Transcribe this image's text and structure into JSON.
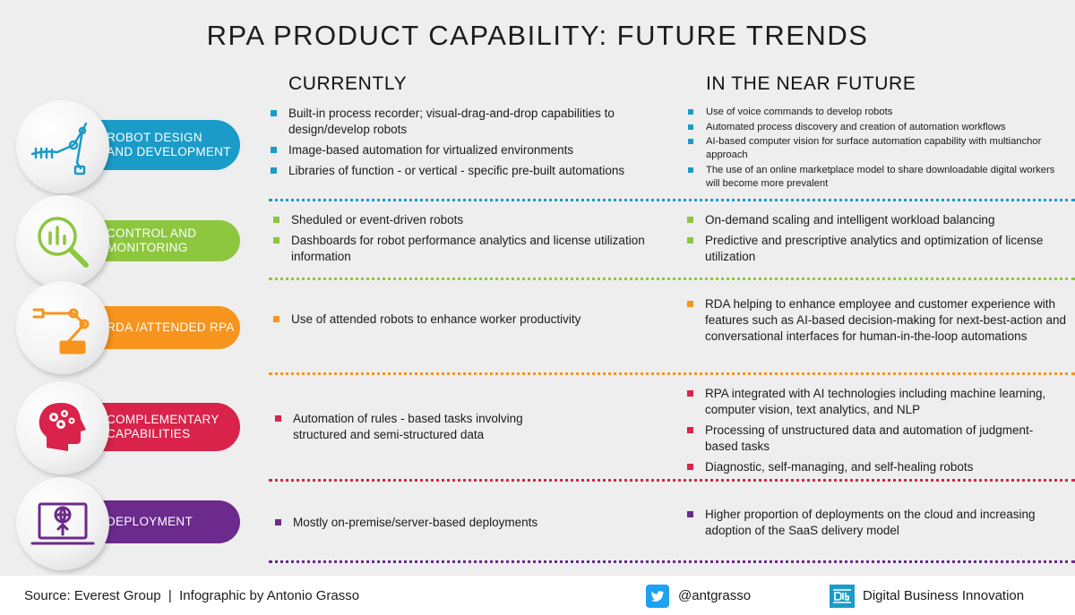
{
  "title": "RPA PRODUCT CAPABILITY: FUTURE TRENDS",
  "columns": {
    "current": "CURRENTLY",
    "future": "IN THE NEAR FUTURE"
  },
  "rows": [
    {
      "label_line1": "ROBOT DESIGN",
      "label_line2": "AND DEVELOPMENT",
      "color": "#1b9bc7",
      "icon": "robot-arm-icon",
      "current": [
        "Built-in process recorder; visual-drag-and-drop capabilities to design/develop robots",
        "Image-based automation for virtualized environments",
        "Libraries of function - or vertical - specific pre-built automations"
      ],
      "future": [
        "Use of voice commands to develop robots",
        "Automated process discovery and creation of automation workflows",
        "AI-based computer vision for surface automation capability with multianchor approach",
        "The use of an online marketplace model to share downloadable digital workers will become more prevalent"
      ]
    },
    {
      "label_line1": "CONTROL AND",
      "label_line2": "MONITORING",
      "color": "#8dc63f",
      "icon": "magnifier-chart-icon",
      "current": [
        "Sheduled or event-driven robots",
        "Dashboards for robot performance analytics and license utilization information"
      ],
      "future": [
        "On-demand scaling and intelligent workload balancing",
        "Predictive and prescriptive analytics and optimization of license utilization"
      ]
    },
    {
      "label_line1": "RDA /ATTENDED RPA",
      "label_line2": "",
      "color": "#f7941d",
      "icon": "industrial-arm-icon",
      "current": [
        "Use of attended robots to enhance worker productivity"
      ],
      "future": [
        "RDA helping to enhance employee and customer experience with features such as AI-based decision-making for next-best-action and conversational interfaces for human-in-the-loop automations"
      ]
    },
    {
      "label_line1": "COMPLEMENTARY",
      "label_line2": "CAPABILITIES",
      "color": "#d9234b",
      "icon": "head-gears-icon",
      "current": [
        "Automation of rules - based tasks involving structured and semi-structured data"
      ],
      "future": [
        "RPA integrated with AI technologies including machine learning, computer vision, text analytics, and NLP",
        "Processing of unstructured data and automation of judgment-based tasks",
        "Diagnostic, self-managing, and self-healing robots"
      ]
    },
    {
      "label_line1": "DEPLOYMENT",
      "label_line2": "",
      "color": "#6b2a8c",
      "icon": "laptop-globe-icon",
      "current": [
        "Mostly on-premise/server-based deployments"
      ],
      "future": [
        "Higher proportion of deployments on the cloud and increasing adoption of the SaaS delivery model"
      ]
    }
  ],
  "footer": {
    "source": "Source: Everest Group  |  Infographic by Antonio Grasso",
    "twitter_handle": "@antgrasso",
    "brand": "Digital Business Innovation",
    "twitter_icon": "twitter-icon",
    "brand_icon": "dbi-logo-icon",
    "twitter_color": "#1da1f2",
    "brand_color": "#1b9bc7"
  }
}
